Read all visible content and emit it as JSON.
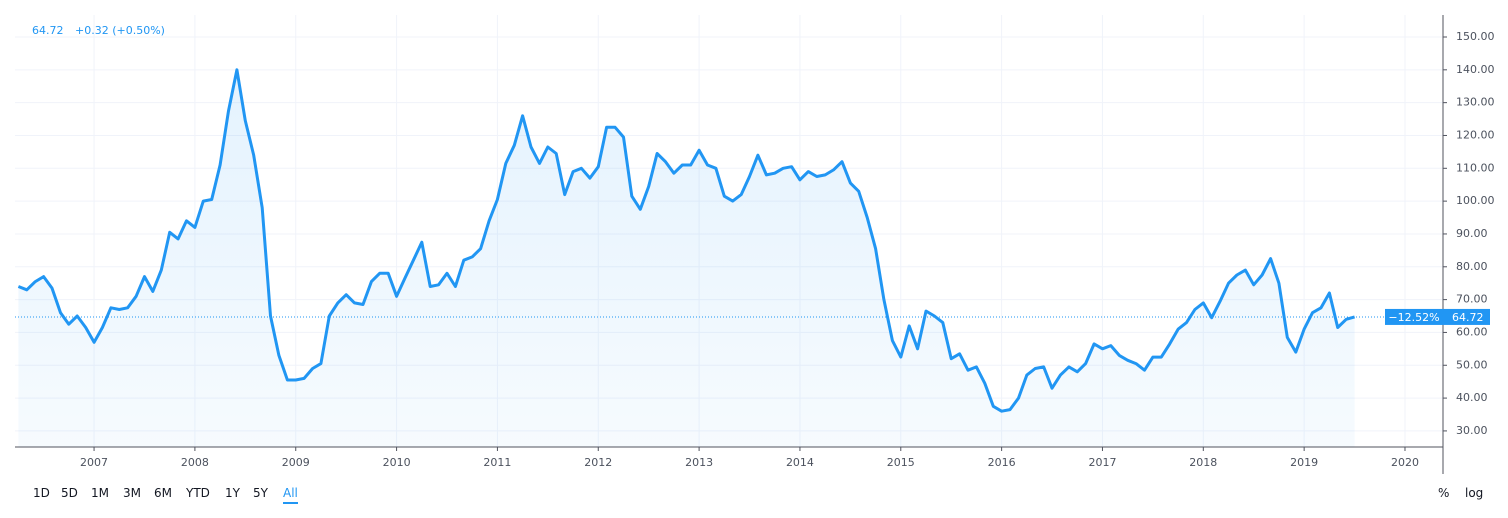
{
  "chart_data": {
    "type": "line",
    "last_price": 64.72,
    "change_text": "+0.32 (+0.50%)",
    "change_label": "−12.52%",
    "color": "#2196f3",
    "grid": true,
    "x": [
      2006.25,
      2006.333,
      2006.417,
      2006.5,
      2006.583,
      2006.667,
      2006.75,
      2006.833,
      2006.917,
      2007,
      2007.083,
      2007.167,
      2007.25,
      2007.333,
      2007.417,
      2007.5,
      2007.583,
      2007.667,
      2007.75,
      2007.833,
      2007.917,
      2008,
      2008.083,
      2008.167,
      2008.25,
      2008.333,
      2008.417,
      2008.5,
      2008.583,
      2008.667,
      2008.75,
      2008.833,
      2008.917,
      2009,
      2009.083,
      2009.167,
      2009.25,
      2009.333,
      2009.417,
      2009.5,
      2009.583,
      2009.667,
      2009.75,
      2009.833,
      2009.917,
      2010,
      2010.083,
      2010.167,
      2010.25,
      2010.333,
      2010.417,
      2010.5,
      2010.583,
      2010.667,
      2010.75,
      2010.833,
      2010.917,
      2011,
      2011.083,
      2011.167,
      2011.25,
      2011.333,
      2011.417,
      2011.5,
      2011.583,
      2011.667,
      2011.75,
      2011.833,
      2011.917,
      2012,
      2012.083,
      2012.167,
      2012.25,
      2012.333,
      2012.417,
      2012.5,
      2012.583,
      2012.667,
      2012.75,
      2012.833,
      2012.917,
      2013,
      2013.083,
      2013.167,
      2013.25,
      2013.333,
      2013.417,
      2013.5,
      2013.583,
      2013.667,
      2013.75,
      2013.833,
      2013.917,
      2014,
      2014.083,
      2014.167,
      2014.25,
      2014.333,
      2014.417,
      2014.5,
      2014.583,
      2014.667,
      2014.75,
      2014.833,
      2014.917,
      2015,
      2015.083,
      2015.167,
      2015.25,
      2015.333,
      2015.417,
      2015.5,
      2015.583,
      2015.667,
      2015.75,
      2015.833,
      2015.917,
      2016,
      2016.083,
      2016.167,
      2016.25,
      2016.333,
      2016.417,
      2016.5,
      2016.583,
      2016.667,
      2016.75,
      2016.833,
      2016.917,
      2017,
      2017.083,
      2017.167,
      2017.25,
      2017.333,
      2017.417,
      2017.5,
      2017.583,
      2017.667,
      2017.75,
      2017.833,
      2017.917,
      2018,
      2018.083,
      2018.167,
      2018.25,
      2018.333,
      2018.417,
      2018.5,
      2018.583,
      2018.667,
      2018.75,
      2018.833,
      2018.917,
      2019,
      2019.083,
      2019.167,
      2019.25,
      2019.333,
      2019.417,
      2019.5
    ],
    "values": [
      74,
      73,
      75.5,
      77,
      73.5,
      66,
      62.5,
      65,
      61.5,
      57,
      61.5,
      67.5,
      67,
      67.5,
      71,
      77,
      72.5,
      79,
      90.5,
      88.5,
      94,
      92,
      100,
      100.5,
      111,
      127.5,
      140,
      124.5,
      114,
      98,
      65,
      53,
      45.5,
      45.5,
      46,
      49,
      50.5,
      65,
      69,
      71.5,
      69,
      68.5,
      75.5,
      78,
      78,
      71,
      76.5,
      82,
      87.5,
      74,
      74.5,
      78,
      74,
      82,
      83,
      85.5,
      94,
      100.5,
      111.5,
      117,
      126,
      116.5,
      111.5,
      116.5,
      114.5,
      102,
      109,
      110,
      107,
      110.5,
      122.5,
      122.5,
      119.5,
      101.5,
      97.5,
      104.5,
      114.5,
      112,
      108.5,
      111,
      111,
      115.5,
      111,
      110,
      101.5,
      100,
      102,
      107.5,
      114,
      108,
      108.5,
      110,
      110.5,
      106.5,
      109,
      107.5,
      108,
      109.5,
      112,
      105.5,
      103,
      95,
      85.5,
      70,
      57.5,
      52.5,
      62,
      55,
      66.5,
      65,
      63,
      52,
      53.5,
      48.5,
      49.5,
      44.5,
      37.5,
      36,
      36.5,
      40,
      47,
      49,
      49.5,
      43,
      47,
      49.5,
      48,
      50.5,
      56.5,
      55,
      56,
      53,
      51.5,
      50.5,
      48.5,
      52.5,
      52.5,
      56.5,
      61,
      63,
      67,
      69,
      64.5,
      69.5,
      75,
      77.5,
      79,
      74.5,
      77.5,
      82.5,
      75,
      58.5,
      54,
      61,
      66,
      67.5,
      72,
      61.5,
      64,
      64.72
    ],
    "xlim": [
      2006.216,
      2020.377
    ],
    "xticks": [
      2007,
      2008,
      2009,
      2010,
      2011,
      2012,
      2013,
      2014,
      2015,
      2016,
      2017,
      2018,
      2019,
      2020
    ],
    "ylim": [
      25.1,
      156.7
    ],
    "yticks": [
      {
        "value": 30,
        "label": "30.00"
      },
      {
        "value": 40,
        "label": "40.00"
      },
      {
        "value": 50,
        "label": "50.00"
      },
      {
        "value": 60,
        "label": "60.00"
      },
      {
        "value": 70,
        "label": "70.00"
      },
      {
        "value": 80,
        "label": "80.00"
      },
      {
        "value": 90,
        "label": "90.00"
      },
      {
        "value": 100,
        "label": "100.00"
      },
      {
        "value": 110,
        "label": "110.00"
      },
      {
        "value": 120,
        "label": "120.00"
      },
      {
        "value": 130,
        "label": "130.00"
      },
      {
        "value": 140,
        "label": "140.00"
      },
      {
        "value": 150,
        "label": "150.00"
      }
    ]
  },
  "toolbar": {
    "ranges": [
      "1D",
      "5D",
      "1M",
      "3M",
      "6M",
      "YTD",
      "1Y",
      "5Y",
      "All"
    ],
    "percent": "%",
    "log": "log"
  }
}
